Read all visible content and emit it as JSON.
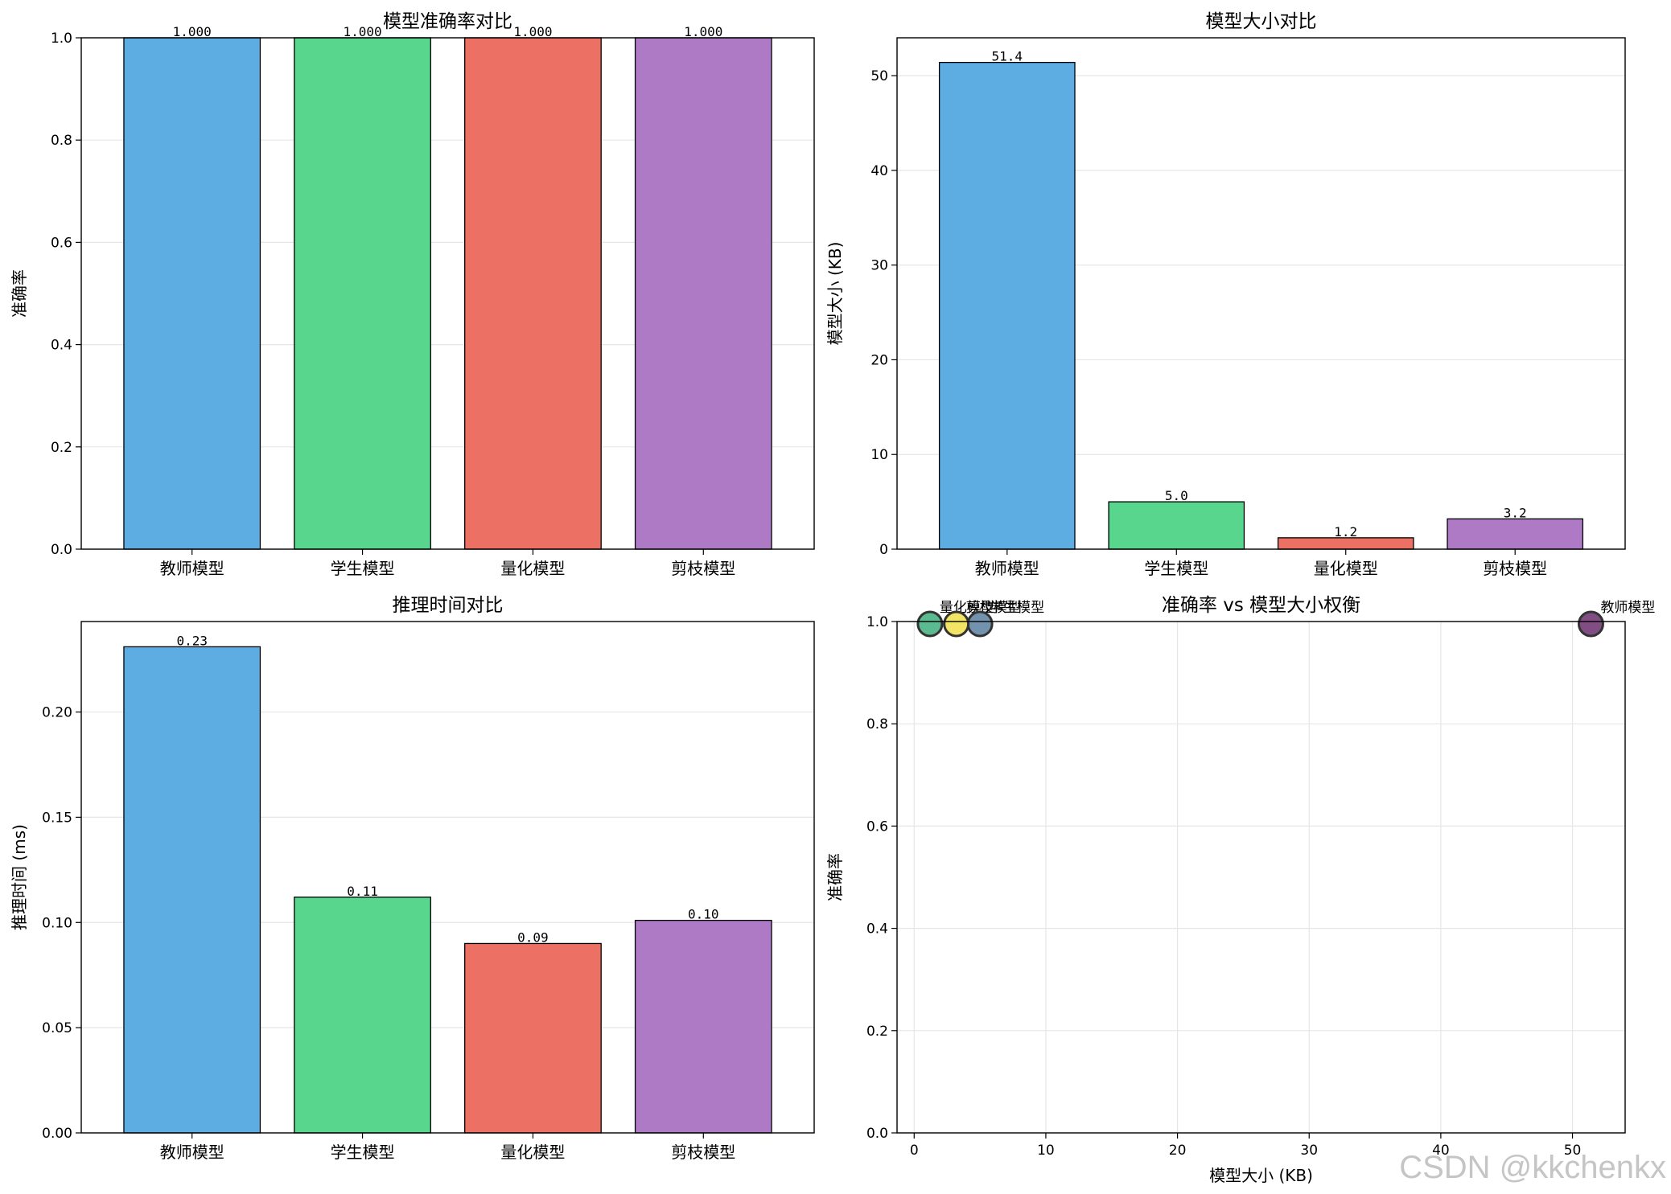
{
  "watermark": "CSDN @kkchenkx",
  "chart_data": [
    {
      "type": "bar",
      "title": "模型准确率对比",
      "xlabel": "",
      "ylabel": "准确率",
      "categories": [
        "教师模型",
        "学生模型",
        "量化模型",
        "剪枝模型"
      ],
      "values": [
        1.0,
        1.0,
        1.0,
        1.0
      ],
      "data_labels": [
        "1.000",
        "1.000",
        "1.000",
        "1.000"
      ],
      "ylim": [
        0,
        1.0
      ],
      "yticks": [
        "0.0",
        "0.2",
        "0.4",
        "0.6",
        "0.8",
        "1.0"
      ],
      "colors": [
        "#5dade2",
        "#58d68d",
        "#ec7063",
        "#af7ac5"
      ],
      "grid": true
    },
    {
      "type": "bar",
      "title": "模型大小对比",
      "xlabel": "",
      "ylabel": "模型大小 (KB)",
      "categories": [
        "教师模型",
        "学生模型",
        "量化模型",
        "剪枝模型"
      ],
      "values": [
        51.4,
        5.0,
        1.2,
        3.2
      ],
      "data_labels": [
        "51.4",
        "5.0",
        "1.2",
        "3.2"
      ],
      "ylim": [
        0,
        54
      ],
      "yticks": [
        "0",
        "10",
        "20",
        "30",
        "40",
        "50"
      ],
      "colors": [
        "#5dade2",
        "#58d68d",
        "#ec7063",
        "#af7ac5"
      ],
      "grid": true
    },
    {
      "type": "bar",
      "title": "推理时间对比",
      "xlabel": "",
      "ylabel": "推理时间 (ms)",
      "categories": [
        "教师模型",
        "学生模型",
        "量化模型",
        "剪枝模型"
      ],
      "values": [
        0.231,
        0.112,
        0.09,
        0.101
      ],
      "data_labels": [
        "0.23",
        "0.11",
        "0.09",
        "0.10"
      ],
      "ylim": [
        0,
        0.243
      ],
      "yticks": [
        "0.00",
        "0.05",
        "0.10",
        "0.15",
        "0.20"
      ],
      "colors": [
        "#5dade2",
        "#58d68d",
        "#ec7063",
        "#af7ac5"
      ],
      "grid": true
    },
    {
      "type": "scatter",
      "title": "准确率 vs 模型大小权衡",
      "xlabel": "模型大小 (KB)",
      "ylabel": "准确率",
      "points": [
        {
          "label": "教师模型",
          "x": 51.4,
          "y": 1.0,
          "color": "#6b2f6e"
        },
        {
          "label": "学生模型",
          "x": 5.0,
          "y": 1.0,
          "color": "#5b7fa0"
        },
        {
          "label": "量化模型",
          "x": 1.2,
          "y": 1.0,
          "color": "#3fae7d"
        },
        {
          "label": "剪枝模型",
          "x": 3.2,
          "y": 1.0,
          "color": "#f0e04a"
        }
      ],
      "xlim": [
        -1.3,
        54
      ],
      "ylim": [
        0,
        1.0
      ],
      "xticks": [
        "0",
        "10",
        "20",
        "30",
        "40",
        "50"
      ],
      "yticks": [
        "0.0",
        "0.2",
        "0.4",
        "0.6",
        "0.8",
        "1.0"
      ],
      "grid": true
    }
  ]
}
